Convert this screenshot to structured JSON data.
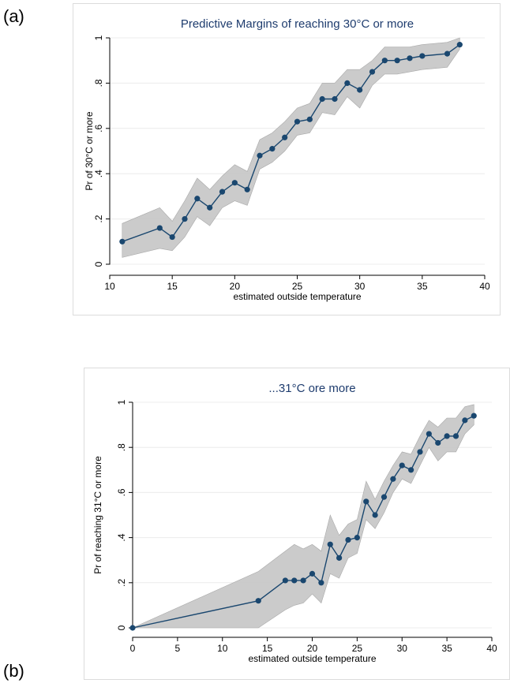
{
  "panel_labels": {
    "a": "(a)",
    "b": "(b)"
  },
  "colors": {
    "line": "#1a476f",
    "band": "#c8c8c8",
    "band_edge": "#a8a8a8",
    "grid": "#ececec",
    "title": "#1e3c6e",
    "frame": "#dcdcdc"
  },
  "chart_data": [
    {
      "type": "line",
      "title": "Predictive Margins of reaching 30°C or more",
      "xlabel": "estimated outside temperature",
      "ylabel": "Pr of 30°C or more",
      "xlim": [
        10,
        40
      ],
      "ylim": [
        0,
        1
      ],
      "x_ticks": [
        10,
        15,
        20,
        25,
        30,
        35,
        40
      ],
      "y_ticks": [
        0,
        0.2,
        0.4,
        0.6,
        0.8,
        1
      ],
      "y_tick_labels": [
        "0",
        ".2",
        ".4",
        ".6",
        ".8",
        "1"
      ],
      "grid": true,
      "series": [
        {
          "x": [
            11,
            14,
            15,
            16,
            17,
            18,
            19,
            20,
            21,
            22,
            23,
            24,
            25,
            26,
            27,
            28,
            29,
            30,
            31,
            32,
            33,
            34,
            35,
            37,
            38
          ],
          "values": [
            0.1,
            0.16,
            0.12,
            0.2,
            0.29,
            0.25,
            0.32,
            0.36,
            0.33,
            0.48,
            0.51,
            0.56,
            0.63,
            0.64,
            0.73,
            0.73,
            0.8,
            0.77,
            0.85,
            0.9,
            0.9,
            0.91,
            0.92,
            0.93,
            0.97
          ],
          "ci_low": [
            0.03,
            0.07,
            0.06,
            0.12,
            0.21,
            0.17,
            0.25,
            0.28,
            0.26,
            0.42,
            0.45,
            0.5,
            0.57,
            0.58,
            0.67,
            0.66,
            0.74,
            0.69,
            0.79,
            0.84,
            0.84,
            0.85,
            0.86,
            0.87,
            0.95
          ],
          "ci_high": [
            0.18,
            0.25,
            0.19,
            0.28,
            0.38,
            0.33,
            0.39,
            0.44,
            0.41,
            0.55,
            0.58,
            0.63,
            0.69,
            0.71,
            0.8,
            0.8,
            0.86,
            0.86,
            0.9,
            0.96,
            0.96,
            0.96,
            0.97,
            0.98,
            1.0
          ]
        }
      ]
    },
    {
      "type": "line",
      "title": "...31°C ore more",
      "xlabel": "estimated outside temperature",
      "ylabel": "Pr of reaching 31°C or more",
      "xlim": [
        0,
        40
      ],
      "ylim": [
        0,
        1
      ],
      "x_ticks": [
        0,
        5,
        10,
        15,
        20,
        25,
        30,
        35,
        40
      ],
      "y_ticks": [
        0,
        0.2,
        0.4,
        0.6,
        0.8,
        1
      ],
      "y_tick_labels": [
        "0",
        ".2",
        ".4",
        ".6",
        ".8",
        "1"
      ],
      "grid": true,
      "series": [
        {
          "x": [
            0,
            14,
            17,
            18,
            19,
            20,
            21,
            22,
            23,
            24,
            25,
            26,
            27,
            28,
            29,
            30,
            31,
            32,
            33,
            34,
            35,
            36,
            37,
            38
          ],
          "values": [
            0.0,
            0.12,
            0.21,
            0.21,
            0.21,
            0.24,
            0.2,
            0.37,
            0.31,
            0.39,
            0.4,
            0.56,
            0.5,
            0.58,
            0.66,
            0.72,
            0.7,
            0.78,
            0.86,
            0.82,
            0.85,
            0.85,
            0.92,
            0.94
          ],
          "ci_low": [
            0.0,
            0.0,
            0.08,
            0.1,
            0.11,
            0.15,
            0.11,
            0.24,
            0.22,
            0.31,
            0.33,
            0.48,
            0.44,
            0.51,
            0.6,
            0.66,
            0.64,
            0.72,
            0.8,
            0.74,
            0.78,
            0.78,
            0.86,
            0.9
          ],
          "ci_high": [
            0.0,
            0.25,
            0.34,
            0.37,
            0.35,
            0.37,
            0.34,
            0.5,
            0.41,
            0.46,
            0.48,
            0.65,
            0.57,
            0.65,
            0.72,
            0.78,
            0.77,
            0.85,
            0.92,
            0.89,
            0.93,
            0.93,
            0.98,
            0.99
          ]
        }
      ]
    }
  ]
}
